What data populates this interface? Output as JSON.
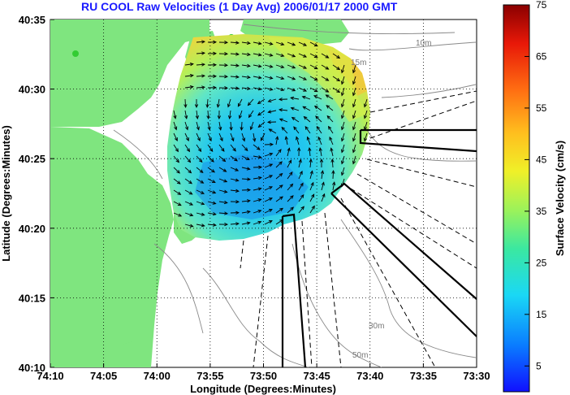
{
  "title": "RU COOL Raw Velocities (1 Day Avg) 2006/01/17 2000 GMT",
  "xaxis": {
    "label": "Longitude (Degrees:Minutes)",
    "ticks": [
      "74:10",
      "74:05",
      "74:00",
      "73:55",
      "73:50",
      "73:45",
      "73:40",
      "73:35",
      "73:30"
    ]
  },
  "yaxis": {
    "label": "Latitude (Degrees:Minutes)",
    "ticks": [
      "40:35",
      "40:30",
      "40:25",
      "40:20",
      "40:15",
      "40:10"
    ]
  },
  "colorbar": {
    "label": "Surface Velocity (cm/s)",
    "ticks": [
      "75",
      "65",
      "55",
      "45",
      "35",
      "25",
      "15",
      "5"
    ],
    "min": 0,
    "max": 75
  },
  "contour_labels": [
    "10m",
    "15m",
    "30m",
    "50m"
  ],
  "colors": {
    "land": "#7fe57f",
    "title": "#1a1aff"
  }
}
